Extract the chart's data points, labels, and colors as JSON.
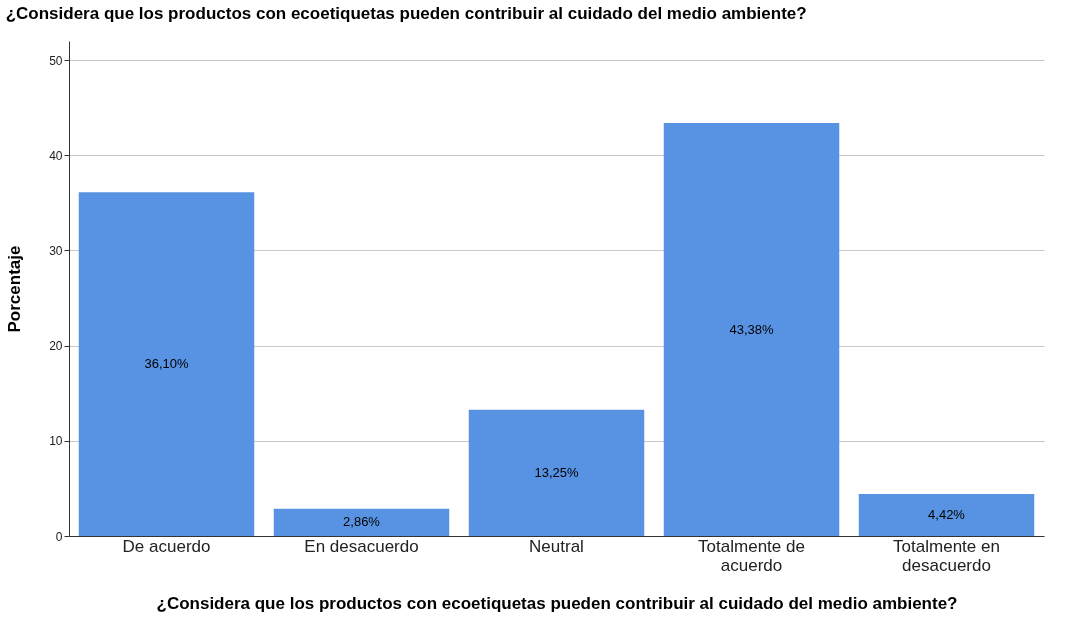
{
  "chart_data": {
    "type": "bar",
    "title": "¿Considera que los productos con ecoetiquetas pueden contribuir al cuidado del medio ambiente?",
    "xlabel": "¿Considera que los productos con ecoetiquetas pueden contribuir al cuidado del medio ambiente?",
    "ylabel": "Porcentaje",
    "categories": [
      "De acuerdo",
      "En desacuerdo",
      "Neutral",
      "Totalmente de acuerdo",
      "Totalmente en desacuerdo"
    ],
    "values": [
      36.1,
      2.86,
      13.25,
      43.38,
      4.42
    ],
    "value_labels": [
      "36,10%",
      "2,86%",
      "13,25%",
      "43,38%",
      "4,42%"
    ],
    "color": "#5893e3",
    "ylim": [
      0,
      52
    ],
    "yticks": [
      0,
      10,
      20,
      30,
      40,
      50
    ],
    "grid": "y"
  }
}
